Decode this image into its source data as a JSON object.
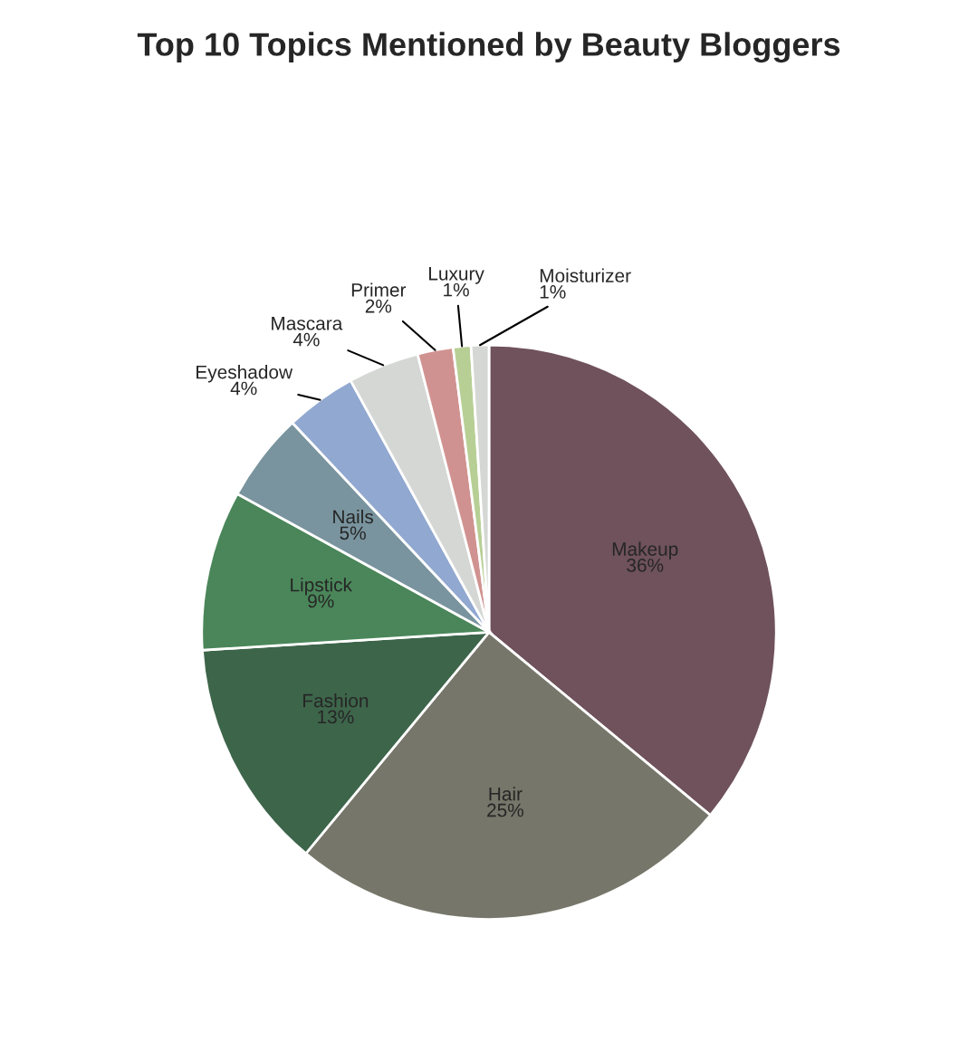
{
  "chart_data": {
    "type": "pie",
    "title": "Top 10 Topics Mentioned by Beauty Bloggers",
    "categories": [
      "Makeup",
      "Hair",
      "Fashion",
      "Lipstick",
      "Nails",
      "Eyeshadow",
      "Mascara",
      "Primer",
      "Luxury",
      "Moisturizer"
    ],
    "values": [
      36,
      25,
      13,
      9,
      5,
      4,
      4,
      2,
      1,
      1
    ],
    "colors": [
      "#6f525b",
      "#76766a",
      "#3d654a",
      "#4a8659",
      "#79949e",
      "#91a8d0",
      "#d5d7d4",
      "#d09290",
      "#b7cf95",
      "#d5d7d4"
    ],
    "value_labels": [
      "36%",
      "25%",
      "13%",
      "9%",
      "5%",
      "4%",
      "4%",
      "2%",
      "1%",
      "1%"
    ]
  }
}
